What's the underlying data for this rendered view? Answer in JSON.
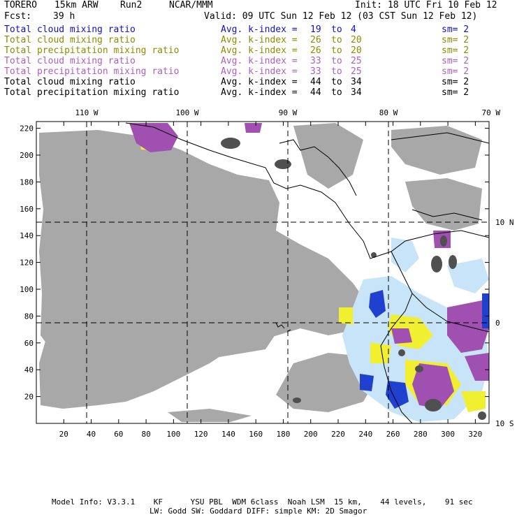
{
  "header": {
    "model": "TORERO",
    "resolution": "15km ARW",
    "run": "Run2",
    "org": "NCAR/MMM",
    "init": "Init: 18 UTC Fri 10 Feb 12",
    "fcst_label": "Fcst:",
    "fcst_value": "39 h",
    "valid": "Valid: 09 UTC Sun 12 Feb 12 (03 CST Sun 12 Feb 12)"
  },
  "legend": [
    {
      "field": "Total cloud mixing ratio",
      "kindex": "Avg. k-index =",
      "from": "19",
      "to_word": "to",
      "to": "4",
      "sm": "sm= 2",
      "color": "#1010c8"
    },
    {
      "field": "Total cloud mixing ratio",
      "kindex": "Avg. k-index =",
      "from": "26",
      "to_word": "to",
      "to": "20",
      "sm": "sm= 2",
      "color": "#8c8c00"
    },
    {
      "field": "Total precipitation mixing ratio",
      "kindex": "Avg. k-index =",
      "from": "26",
      "to_word": "to",
      "to": "20",
      "sm": "sm= 2",
      "color": "#8c8c00"
    },
    {
      "field": "Total cloud mixing ratio",
      "kindex": "Avg. k-index =",
      "from": "33",
      "to_word": "to",
      "to": "25",
      "sm": "sm= 2",
      "color": "#b05cc0"
    },
    {
      "field": "Total precipitation mixing ratio",
      "kindex": "Avg. k-index =",
      "from": "33",
      "to_word": "to",
      "to": "25",
      "sm": "sm= 2",
      "color": "#b05cc0"
    },
    {
      "field": "Total cloud mixing ratio",
      "kindex": "Avg. k-index =",
      "from": "44",
      "to_word": "to",
      "to": "34",
      "sm": "sm= 2",
      "color": "#000000"
    },
    {
      "field": "Total precipitation mixing ratio",
      "kindex": "Avg. k-index =",
      "from": "44",
      "to_word": "to",
      "to": "34",
      "sm": "sm= 2",
      "color": "#000000"
    }
  ],
  "map": {
    "lon_labels": [
      "110 W",
      "100 W",
      "90 W",
      "80 W",
      "70 W"
    ],
    "lat_labels": [
      "10 N",
      "0",
      "10 S"
    ],
    "x_ticks": [
      "20",
      "40",
      "60",
      "80",
      "100",
      "120",
      "140",
      "160",
      "180",
      "200",
      "220",
      "240",
      "260",
      "280",
      "300",
      "320"
    ],
    "y_ticks": [
      "220",
      "200",
      "180",
      "160",
      "140",
      "120",
      "100",
      "80",
      "60",
      "40",
      "20"
    ],
    "colors": {
      "gray_cloud": "#a8a8a8",
      "dark_cloud": "#505050",
      "purple": "#a050b0",
      "yellow": "#f0f030",
      "blue": "#2040d0",
      "light_blue": "#c8e4f8"
    }
  },
  "footer": {
    "line1": "Model Info: V3.3.1    KF      YSU PBL  WDM 6class  Noah LSM  15 km,    44 levels,    91 sec",
    "line2": "LW: Godd SW: Goddard DIFF: simple KM: 2D Smagor"
  }
}
